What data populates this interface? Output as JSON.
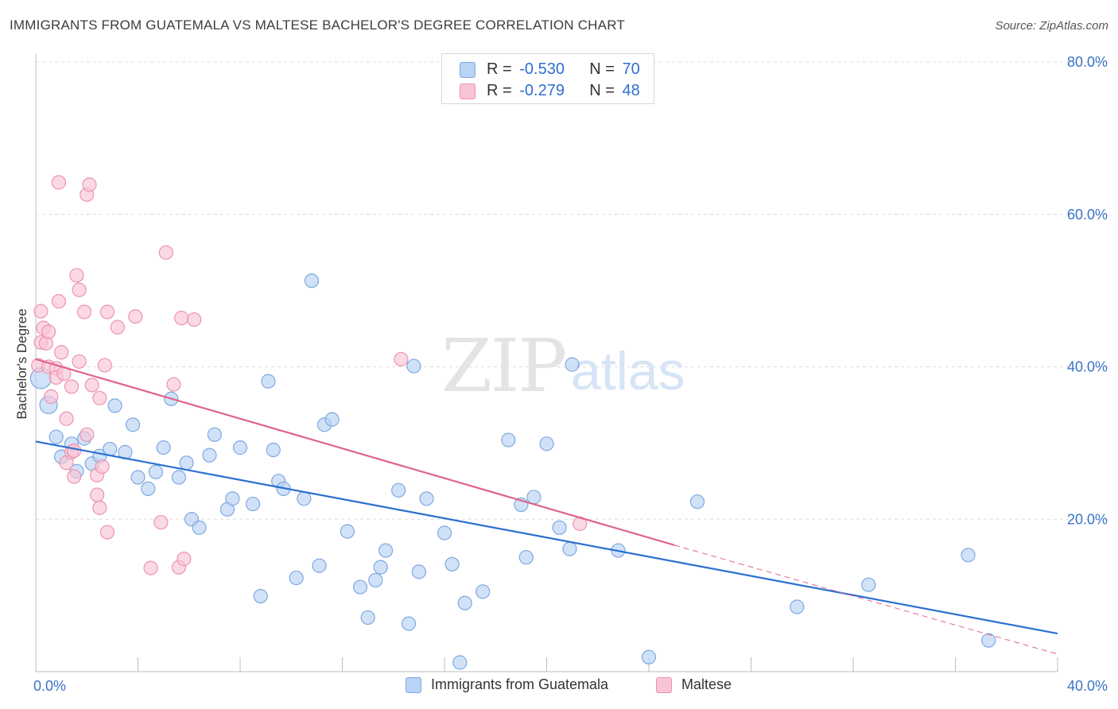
{
  "title": "IMMIGRANTS FROM GUATEMALA VS MALTESE BACHELOR'S DEGREE CORRELATION CHART",
  "source": "Source: ZipAtlas.com",
  "watermark": {
    "zip": "ZIP",
    "atlas": "atlas"
  },
  "colors": {
    "blue_fill": "#b9d3f4",
    "blue_stroke": "#7fa8e0",
    "blue_line": "#2a6fd1",
    "pink_fill": "#f9c5d5",
    "pink_stroke": "#ec93b0",
    "pink_line": "#e0648e",
    "tick_text": "#3a73c7",
    "grid": "#dcdcdc"
  },
  "legend": {
    "series1": {
      "label": "Immigrants from Guatemala"
    },
    "series2": {
      "label": "Maltese"
    }
  },
  "stats": {
    "row1": {
      "r_label": "R = ",
      "r_value": "-0.530",
      "n_label": "N = ",
      "n_value": "70"
    },
    "row2": {
      "r_label": "R = ",
      "r_value": "-0.279",
      "n_label": "N = ",
      "n_value": "48"
    }
  },
  "chart_data": {
    "type": "scatter",
    "title": "IMMIGRANTS FROM GUATEMALA VS MALTESE BACHELOR'S DEGREE CORRELATION CHART",
    "xlabel": "",
    "ylabel": "Bachelor's Degree",
    "xlim": [
      0,
      40
    ],
    "ylim": [
      0,
      80
    ],
    "x_tick_labels": [
      "0.0%",
      "40.0%"
    ],
    "y_ticks": [
      20,
      40,
      60,
      80
    ],
    "y_tick_labels": [
      "20.0%",
      "40.0%",
      "60.0%",
      "80.0%"
    ],
    "grid": "horizontal dashed",
    "legend_position": "bottom-center",
    "series": [
      {
        "name": "Immigrants from Guatemala",
        "color": "#b9d3f4",
        "points": [
          [
            0.2,
            38.5
          ],
          [
            0.5,
            35
          ],
          [
            0.8,
            30.8
          ],
          [
            1.0,
            28.2
          ],
          [
            1.4,
            29.9
          ],
          [
            1.6,
            26.3
          ],
          [
            1.9,
            30.6
          ],
          [
            2.2,
            27.3
          ],
          [
            2.5,
            28.3
          ],
          [
            2.9,
            29.2
          ],
          [
            3.1,
            34.9
          ],
          [
            3.5,
            28.8
          ],
          [
            3.8,
            32.4
          ],
          [
            4.0,
            25.5
          ],
          [
            4.4,
            24.0
          ],
          [
            4.7,
            26.2
          ],
          [
            5.0,
            29.4
          ],
          [
            5.3,
            35.8
          ],
          [
            5.6,
            25.5
          ],
          [
            5.9,
            27.4
          ],
          [
            6.1,
            20.0
          ],
          [
            6.4,
            18.9
          ],
          [
            6.8,
            28.4
          ],
          [
            7.0,
            31.1
          ],
          [
            7.5,
            21.3
          ],
          [
            7.7,
            22.7
          ],
          [
            8.0,
            29.4
          ],
          [
            8.5,
            22.0
          ],
          [
            8.8,
            9.9
          ],
          [
            9.1,
            38.1
          ],
          [
            9.3,
            29.1
          ],
          [
            9.5,
            25.0
          ],
          [
            9.7,
            24.0
          ],
          [
            10.2,
            12.3
          ],
          [
            10.5,
            22.7
          ],
          [
            10.8,
            51.3
          ],
          [
            11.1,
            13.9
          ],
          [
            11.3,
            32.4
          ],
          [
            11.6,
            33.1
          ],
          [
            12.2,
            18.4
          ],
          [
            12.7,
            11.1
          ],
          [
            13.0,
            7.1
          ],
          [
            13.3,
            12.0
          ],
          [
            13.5,
            13.7
          ],
          [
            13.7,
            15.9
          ],
          [
            14.2,
            23.8
          ],
          [
            14.6,
            6.3
          ],
          [
            14.8,
            40.1
          ],
          [
            15.0,
            13.1
          ],
          [
            15.3,
            22.7
          ],
          [
            16.0,
            18.2
          ],
          [
            16.3,
            14.1
          ],
          [
            16.6,
            1.2
          ],
          [
            16.8,
            9.0
          ],
          [
            17.5,
            10.5
          ],
          [
            18.5,
            30.4
          ],
          [
            19.0,
            21.9
          ],
          [
            19.2,
            15.0
          ],
          [
            19.5,
            22.9
          ],
          [
            20.0,
            29.9
          ],
          [
            20.5,
            18.9
          ],
          [
            20.9,
            16.1
          ],
          [
            21.0,
            40.3
          ],
          [
            22.8,
            15.9
          ],
          [
            24.0,
            1.9
          ],
          [
            25.9,
            22.3
          ],
          [
            29.8,
            8.5
          ],
          [
            32.6,
            11.4
          ],
          [
            36.5,
            15.3
          ],
          [
            37.3,
            4.1
          ]
        ]
      },
      {
        "name": "Maltese",
        "color": "#f9c5d5",
        "points": [
          [
            0.1,
            40.2
          ],
          [
            0.2,
            43.2
          ],
          [
            0.2,
            47.3
          ],
          [
            0.3,
            45.1
          ],
          [
            0.4,
            43.1
          ],
          [
            0.5,
            40.0
          ],
          [
            0.5,
            44.6
          ],
          [
            0.6,
            36.1
          ],
          [
            0.8,
            39.8
          ],
          [
            0.8,
            38.6
          ],
          [
            0.9,
            64.2
          ],
          [
            0.9,
            48.6
          ],
          [
            1.0,
            41.9
          ],
          [
            1.1,
            39.1
          ],
          [
            1.2,
            33.2
          ],
          [
            1.2,
            27.4
          ],
          [
            1.4,
            28.8
          ],
          [
            1.4,
            37.4
          ],
          [
            1.5,
            25.6
          ],
          [
            1.6,
            52.0
          ],
          [
            1.7,
            50.1
          ],
          [
            1.7,
            40.7
          ],
          [
            1.9,
            47.2
          ],
          [
            2.0,
            62.6
          ],
          [
            2.0,
            31.1
          ],
          [
            2.1,
            63.9
          ],
          [
            2.2,
            37.6
          ],
          [
            2.4,
            25.8
          ],
          [
            2.4,
            23.2
          ],
          [
            2.5,
            21.5
          ],
          [
            2.5,
            35.9
          ],
          [
            2.6,
            26.9
          ],
          [
            2.7,
            40.2
          ],
          [
            2.8,
            47.2
          ],
          [
            2.8,
            18.3
          ],
          [
            3.2,
            45.2
          ],
          [
            3.9,
            46.6
          ],
          [
            4.5,
            13.6
          ],
          [
            4.9,
            19.6
          ],
          [
            5.1,
            55.0
          ],
          [
            5.4,
            37.7
          ],
          [
            5.6,
            13.7
          ],
          [
            5.7,
            46.4
          ],
          [
            5.8,
            14.8
          ],
          [
            6.2,
            46.2
          ],
          [
            14.3,
            41.0
          ],
          [
            21.3,
            19.4
          ],
          [
            1.5,
            29.0
          ]
        ]
      }
    ],
    "trend_lines": [
      {
        "series": "Immigrants from Guatemala",
        "x": [
          0,
          40
        ],
        "y": [
          30.2,
          5.0
        ],
        "style": "solid"
      },
      {
        "series": "Maltese",
        "x": [
          0,
          25
        ],
        "y": [
          41.0,
          16.6
        ],
        "style": "solid"
      },
      {
        "series": "Maltese",
        "x": [
          25,
          40
        ],
        "y": [
          16.6,
          2.3
        ],
        "style": "dashed"
      }
    ]
  }
}
